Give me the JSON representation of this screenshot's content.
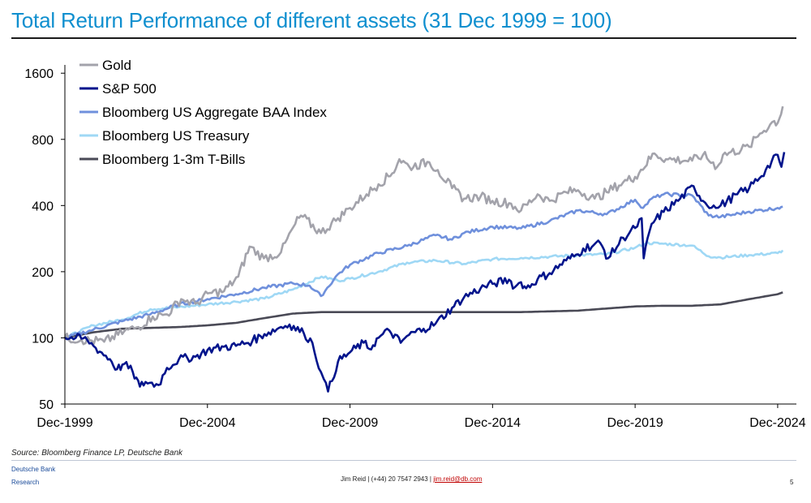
{
  "page": {
    "title": "Total Return Performance of different assets (31 Dec 1999 = 100)",
    "source": "Source: Bloomberg Finance LP, Deutsche Bank",
    "brand_line1": "Deutsche Bank",
    "brand_line2": "Research",
    "contact_prefix": "Jim Reid | (+44) 20 7547 2943 | ",
    "contact_email": "jim.reid@db.com",
    "page_number": "5"
  },
  "chart_data": {
    "type": "line",
    "y_scale": "log",
    "ylim": [
      50,
      1900
    ],
    "xlim": [
      1999.92,
      2025.15
    ],
    "y_ticks": [
      50,
      100,
      200,
      400,
      800,
      1600
    ],
    "y_tick_labels": [
      "50",
      "100",
      "200",
      "400",
      "800",
      "1600"
    ],
    "x_ticks": [
      1999.92,
      2004.92,
      2009.92,
      2014.92,
      2019.92,
      2024.92
    ],
    "x_tick_labels": [
      "Dec-1999",
      "Dec-2004",
      "Dec-2009",
      "Dec-2014",
      "Dec-2019",
      "Dec-2024"
    ],
    "legend_position": "top-left",
    "grid": false,
    "series": [
      {
        "name": "Gold",
        "color": "#a3a3ab",
        "x": [
          1999.92,
          2000.5,
          2001.3,
          2002.0,
          2002.5,
          2003.0,
          2003.5,
          2004.0,
          2004.5,
          2005.0,
          2005.5,
          2006.0,
          2006.4,
          2006.9,
          2007.5,
          2008.0,
          2008.2,
          2008.9,
          2009.5,
          2009.92,
          2010.5,
          2010.92,
          2011.4,
          2011.65,
          2012.0,
          2012.7,
          2013.0,
          2013.5,
          2013.92,
          2014.5,
          2014.92,
          2015.5,
          2015.92,
          2016.5,
          2016.92,
          2017.5,
          2017.92,
          2018.5,
          2018.92,
          2019.5,
          2019.92,
          2020.6,
          2021.0,
          2021.92,
          2022.3,
          2022.8,
          2023.0,
          2023.92,
          2024.3,
          2024.8,
          2024.92,
          2025.1
        ],
        "y": [
          100,
          98,
          96,
          107,
          112,
          125,
          128,
          150,
          143,
          160,
          163,
          190,
          260,
          230,
          245,
          330,
          360,
          300,
          350,
          390,
          450,
          500,
          560,
          650,
          600,
          630,
          580,
          480,
          430,
          440,
          420,
          410,
          380,
          450,
          420,
          460,
          470,
          430,
          460,
          510,
          540,
          690,
          650,
          640,
          680,
          600,
          680,
          740,
          850,
          970,
          950,
          1130
        ]
      },
      {
        "name": "S&P 500",
        "color": "#00148c",
        "x": [
          1999.92,
          2000.3,
          2000.7,
          2001.0,
          2001.5,
          2001.75,
          2002.0,
          2002.3,
          2002.55,
          2002.75,
          2003.2,
          2003.5,
          2003.92,
          2004.5,
          2004.92,
          2005.5,
          2005.92,
          2006.5,
          2006.92,
          2007.5,
          2007.8,
          2008.3,
          2008.6,
          2008.9,
          2009.0,
          2009.15,
          2009.5,
          2009.92,
          2010.4,
          2010.6,
          2010.92,
          2011.3,
          2011.7,
          2011.92,
          2012.5,
          2012.92,
          2013.5,
          2013.92,
          2014.5,
          2014.92,
          2015.5,
          2015.7,
          2015.92,
          2016.1,
          2016.5,
          2016.92,
          2017.5,
          2017.92,
          2018.1,
          2018.7,
          2018.97,
          2019.5,
          2019.92,
          2020.15,
          2020.22,
          2020.5,
          2020.92,
          2021.5,
          2021.97,
          2022.3,
          2022.75,
          2022.92,
          2023.5,
          2023.92,
          2024.5,
          2024.92,
          2025.05,
          2025.15
        ],
        "y": [
          100,
          100,
          98,
          90,
          80,
          72,
          76,
          70,
          60,
          63,
          61,
          73,
          80,
          82,
          88,
          91,
          92,
          97,
          104,
          112,
          115,
          105,
          95,
          70,
          65,
          57,
          78,
          86,
          95,
          89,
          100,
          108,
          95,
          102,
          110,
          116,
          137,
          153,
          168,
          176,
          184,
          170,
          179,
          168,
          185,
          197,
          225,
          240,
          255,
          270,
          230,
          285,
          316,
          350,
          230,
          330,
          374,
          430,
          490,
          420,
          390,
          400,
          450,
          480,
          580,
          680,
          600,
          700
        ]
      },
      {
        "name": "Bloomberg US Aggregate BAA Index",
        "color": "#6f90dc",
        "x": [
          1999.92,
          2000.92,
          2001.92,
          2002.92,
          2003.92,
          2004.92,
          2005.92,
          2006.92,
          2007.92,
          2008.5,
          2008.9,
          2009.5,
          2009.92,
          2010.92,
          2011.92,
          2012.92,
          2013.5,
          2013.92,
          2014.92,
          2015.92,
          2016.92,
          2017.92,
          2018.92,
          2019.92,
          2020.2,
          2020.5,
          2020.92,
          2021.92,
          2022.5,
          2022.92,
          2023.92,
          2024.92,
          2025.1
        ],
        "y": [
          100,
          109,
          119,
          128,
          142,
          150,
          158,
          169,
          177,
          173,
          155,
          195,
          215,
          243,
          262,
          293,
          280,
          300,
          320,
          315,
          340,
          380,
          365,
          425,
          390,
          430,
          450,
          445,
          360,
          355,
          375,
          390,
          395
        ]
      },
      {
        "name": "Bloomberg US Treasury",
        "color": "#9fd8f5",
        "x": [
          1999.92,
          2000.92,
          2001.92,
          2002.92,
          2003.92,
          2004.92,
          2005.92,
          2006.92,
          2007.92,
          2008.92,
          2009.5,
          2009.92,
          2010.92,
          2011.92,
          2012.92,
          2013.92,
          2014.92,
          2015.92,
          2016.92,
          2017.92,
          2018.92,
          2019.92,
          2020.3,
          2020.92,
          2021.92,
          2022.5,
          2022.92,
          2023.92,
          2024.92,
          2025.1
        ],
        "y": [
          100,
          114,
          121,
          135,
          138,
          142,
          146,
          151,
          166,
          190,
          182,
          186,
          200,
          220,
          225,
          217,
          228,
          231,
          234,
          238,
          240,
          257,
          270,
          268,
          263,
          235,
          232,
          238,
          243,
          250
        ]
      },
      {
        "name": "Bloomberg 1-3m T-Bills",
        "color": "#4a4a56",
        "x": [
          1999.92,
          2000.92,
          2001.92,
          2002.92,
          2003.92,
          2004.92,
          2005.92,
          2006.92,
          2007.92,
          2008.92,
          2009.92,
          2012.92,
          2015.92,
          2016.92,
          2017.92,
          2018.92,
          2019.92,
          2020.92,
          2021.92,
          2022.92,
          2023.92,
          2024.92,
          2025.1
        ],
        "y": [
          100,
          106,
          110,
          111,
          112,
          114,
          117,
          123,
          129,
          131,
          131,
          131,
          131,
          132,
          133,
          136,
          139,
          140,
          140,
          142,
          150,
          158,
          161
        ]
      }
    ]
  }
}
